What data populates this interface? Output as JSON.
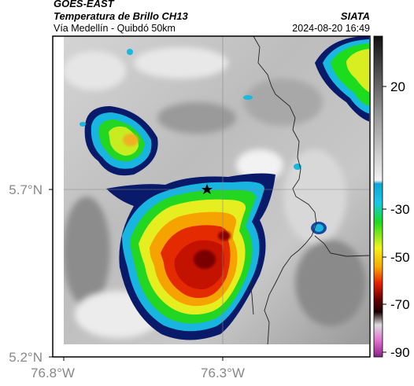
{
  "header": {
    "satellite": "GOES-EAST",
    "product": "Temperatura de Brillo CH13",
    "brand": "SIATA",
    "location": "Vía Medellín - Quibdó 50km",
    "datetime": "2024-08-20 16:49"
  },
  "axes": {
    "lat_ticks": [
      "5.7°N",
      "5.2°N"
    ],
    "lon_ticks": [
      "76.8°W",
      "76.3°W"
    ]
  },
  "colorbar": {
    "labels": [
      "20",
      "-30",
      "-50",
      "-70",
      "-90"
    ],
    "colors": [
      "#1a1a1a",
      "#606060",
      "#a8a8a8",
      "#ececec",
      "#0fa6d6",
      "#1ddc1d",
      "#f4f41a",
      "#f7a800",
      "#e82000",
      "#8a0000",
      "#1a0000",
      "#c0c0c0",
      "#c050c0"
    ]
  },
  "legend_marker": "star-icon"
}
